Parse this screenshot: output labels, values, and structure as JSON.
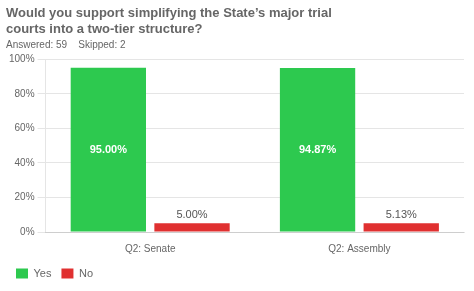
{
  "chart_data": {
    "type": "bar",
    "title": "Would you support simplifying the State’s major trial\ncourts into a two-tier structure?",
    "subtitle": "Answered: 59    Skipped: 2",
    "categories": [
      "Q2: Senate",
      "Q2: Assembly"
    ],
    "series": [
      {
        "name": "Yes",
        "color": "#2dc94f",
        "values": [
          95.0,
          94.87
        ],
        "value_labels": [
          "95.00%",
          "94.87%"
        ]
      },
      {
        "name": "No",
        "color": "#e03030",
        "values": [
          5.0,
          5.13
        ],
        "value_labels": [
          "5.00%",
          "5.13%"
        ]
      }
    ],
    "ylim": [
      0,
      100
    ],
    "yticks": [
      {
        "value": 0,
        "label": "0%"
      },
      {
        "value": 20,
        "label": "20%"
      },
      {
        "value": 40,
        "label": "40%"
      },
      {
        "value": 60,
        "label": "60%"
      },
      {
        "value": 80,
        "label": "80%"
      },
      {
        "value": 100,
        "label": "100%"
      }
    ],
    "grid": true,
    "legend": "bottom",
    "data_labels": true
  }
}
